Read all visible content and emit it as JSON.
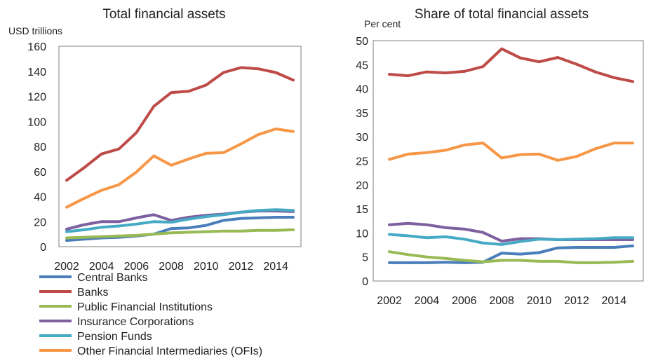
{
  "colors": {
    "central": "#4a7ebb",
    "banks": "#be4b48",
    "public": "#98b954",
    "insurance": "#7d60a0",
    "pension": "#46aac5",
    "ofi": "#f79646"
  },
  "chart_data": [
    {
      "type": "line",
      "title": "Total financial assets",
      "ylabel": "USD trillions",
      "xlabel": "",
      "xlim": [
        2002,
        2015
      ],
      "ylim": [
        0,
        160
      ],
      "y_ticks": [
        0,
        20,
        40,
        60,
        80,
        100,
        120,
        140,
        160
      ],
      "x_ticks": [
        2002,
        2004,
        2006,
        2008,
        2010,
        2012,
        2014
      ],
      "grid": false,
      "legend": "bottom",
      "x": [
        2002,
        2003,
        2004,
        2005,
        2006,
        2007,
        2008,
        2009,
        2010,
        2011,
        2012,
        2013,
        2014,
        2015
      ],
      "series": [
        {
          "name": "Central Banks",
          "color_key": "central",
          "values": [
            5,
            6,
            7,
            7.5,
            8.5,
            10,
            14.5,
            15,
            17,
            21,
            22.5,
            23,
            23.5,
            23.5
          ]
        },
        {
          "name": "Banks",
          "color_key": "banks",
          "values": [
            53,
            63,
            74,
            78,
            91,
            112,
            123,
            124,
            129,
            139,
            143,
            142,
            139,
            133
          ]
        },
        {
          "name": "Public Financial Institutions",
          "color_key": "public",
          "values": [
            7,
            7.5,
            8,
            8.5,
            9,
            10,
            11,
            11.5,
            12,
            12.5,
            12.5,
            13,
            13,
            13.5
          ]
        },
        {
          "name": "Insurance Corporations",
          "color_key": "insurance",
          "values": [
            14,
            17.5,
            20,
            20,
            23,
            25.5,
            21,
            23.5,
            25,
            26,
            27.5,
            28.5,
            28.5,
            28
          ]
        },
        {
          "name": "Pension Funds",
          "color_key": "pension",
          "values": [
            12,
            13.5,
            15.5,
            16.5,
            18,
            20,
            19.5,
            22,
            24,
            25.5,
            27.5,
            29,
            29.5,
            29
          ]
        },
        {
          "name": "Other Financial Intermediaries (OFIs)",
          "color_key": "ofi",
          "values": [
            31.5,
            38.5,
            45,
            49.5,
            59.5,
            72.5,
            65,
            70,
            74.5,
            75,
            82,
            89.5,
            94,
            92
          ]
        }
      ]
    },
    {
      "type": "line",
      "title": "Share of total financial assets",
      "ylabel": "Per cent",
      "xlabel": "",
      "xlim": [
        2002,
        2015
      ],
      "ylim": [
        0,
        50
      ],
      "y_ticks": [
        0,
        5,
        10,
        15,
        20,
        25,
        30,
        35,
        40,
        45,
        50
      ],
      "x_ticks": [
        2002,
        2004,
        2006,
        2008,
        2010,
        2012,
        2014
      ],
      "grid": false,
      "legend": "none",
      "x": [
        2002,
        2003,
        2004,
        2005,
        2006,
        2007,
        2008,
        2009,
        2010,
        2011,
        2012,
        2013,
        2014,
        2015
      ],
      "series": [
        {
          "name": "Central Banks",
          "color_key": "central",
          "values": [
            3.8,
            3.8,
            3.8,
            3.9,
            3.8,
            3.9,
            5.8,
            5.6,
            5.9,
            6.9,
            7.0,
            7.0,
            7.0,
            7.3
          ]
        },
        {
          "name": "Banks",
          "color_key": "banks",
          "values": [
            43.0,
            42.7,
            43.5,
            43.3,
            43.6,
            44.6,
            48.3,
            46.4,
            45.6,
            46.5,
            45.1,
            43.5,
            42.3,
            41.5
          ]
        },
        {
          "name": "Public Financial Institutions",
          "color_key": "public",
          "values": [
            6.1,
            5.5,
            5.0,
            4.7,
            4.3,
            4.0,
            4.3,
            4.3,
            4.1,
            4.1,
            3.8,
            3.8,
            3.9,
            4.1
          ]
        },
        {
          "name": "Insurance Corporations",
          "color_key": "insurance",
          "values": [
            11.7,
            12.0,
            11.7,
            11.1,
            10.8,
            10.1,
            8.3,
            8.8,
            8.8,
            8.6,
            8.6,
            8.6,
            8.6,
            8.6
          ]
        },
        {
          "name": "Pension Funds",
          "color_key": "pension",
          "values": [
            9.7,
            9.4,
            9.0,
            9.2,
            8.7,
            7.9,
            7.6,
            8.2,
            8.7,
            8.6,
            8.7,
            8.8,
            9.0,
            9.0
          ]
        },
        {
          "name": "Other Financial Intermediaries (OFIs)",
          "color_key": "ofi",
          "values": [
            25.3,
            26.4,
            26.7,
            27.2,
            28.3,
            28.7,
            25.6,
            26.3,
            26.4,
            25.1,
            25.9,
            27.5,
            28.7,
            28.7
          ]
        }
      ]
    }
  ]
}
